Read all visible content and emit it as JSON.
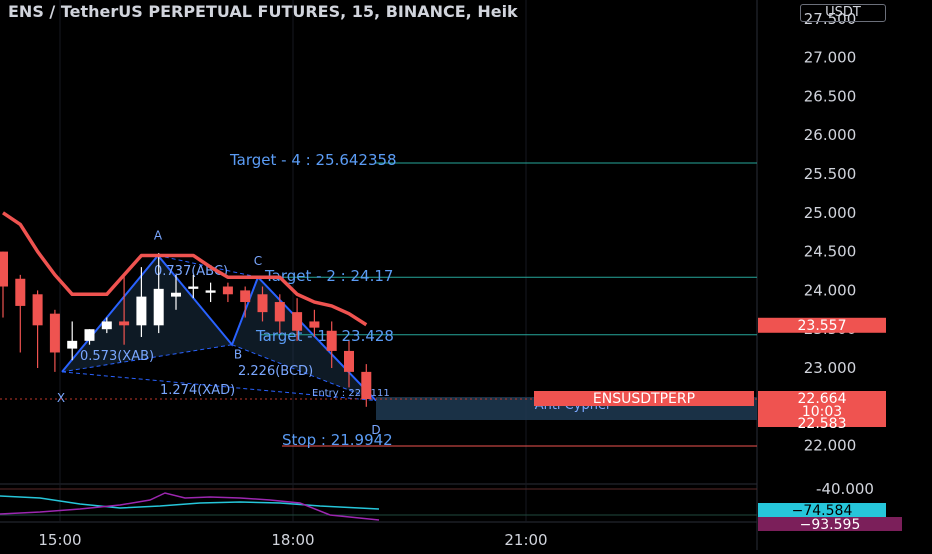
{
  "header": {
    "title": "ENS / TetherUS PERPETUAL FUTURES, 15, BINANCE, Heik",
    "currency": "USDT"
  },
  "price_axis": {
    "ticks": [
      "27.500",
      "27.000",
      "26.500",
      "26.000",
      "25.500",
      "25.000",
      "24.500",
      "24.000",
      "23.500",
      "23.000",
      "22.000"
    ]
  },
  "time_axis": {
    "ticks": [
      "15:00",
      "18:00",
      "21:00"
    ]
  },
  "price_labels": {
    "ma_value": "23.557",
    "last_price": "22.664",
    "countdown": "10:03",
    "entry_box_price": "22.583",
    "symbol_tag": "ENSUSDTPERP"
  },
  "harmonic": {
    "point_a": "A",
    "point_b": "B",
    "point_c": "C",
    "point_d": "D",
    "point_x": "X",
    "ratio_abc": "0.737(ABC)",
    "ratio_xab": "0.573(XAB)",
    "ratio_bcd": "2.226(BCD)",
    "ratio_xad": "1.274(XAD)",
    "entry": "Entry : 22.7111",
    "pattern_name": "Anti Cypher",
    "target_4": "Target - 4 : 25.642358",
    "target_2": "Target - 2 : 24.17",
    "target_1": "Target - 1 : 23.428",
    "stop": "Stop : 21.9942"
  },
  "oscillator": {
    "ticks": [
      "-40.000"
    ],
    "value_cyan": "−74.584",
    "value_purple": "−93.595"
  },
  "colors": {
    "up": "#ffffff",
    "down": "#ef5350",
    "ma_line": "#ef5350",
    "pattern": "#2962ff",
    "pattern_fill": "#1e3a52",
    "target_line": "#26a69a",
    "stop_line": "#ef5350",
    "osc_cyan": "#26c6da",
    "osc_purple": "#9c27b0",
    "axis_text": "#d1d4dc"
  },
  "chart_data": {
    "type": "candlestick",
    "x": [
      "14:15",
      "14:30",
      "14:45",
      "15:00",
      "15:15",
      "15:30",
      "15:45",
      "16:00",
      "16:15",
      "16:30",
      "16:45",
      "17:00",
      "17:15",
      "17:30",
      "17:45",
      "18:00",
      "18:15",
      "18:30",
      "18:45",
      "19:00",
      "19:15",
      "19:30"
    ],
    "open": [
      24.5,
      24.15,
      23.95,
      23.7,
      23.25,
      23.35,
      23.5,
      23.6,
      23.55,
      23.55,
      23.92,
      24.02,
      23.97,
      24.05,
      24.0,
      23.95,
      23.85,
      23.72,
      23.6,
      23.48,
      23.22,
      22.95
    ],
    "close": [
      24.05,
      23.8,
      23.55,
      23.2,
      23.35,
      23.5,
      23.6,
      23.55,
      23.92,
      24.02,
      23.97,
      24.05,
      24.0,
      23.95,
      23.85,
      23.72,
      23.6,
      23.48,
      23.52,
      23.22,
      22.95,
      22.6
    ],
    "high": [
      24.5,
      24.2,
      24.0,
      23.75,
      23.6,
      23.5,
      23.65,
      24.2,
      24.3,
      24.48,
      24.2,
      24.2,
      24.1,
      24.1,
      24.05,
      24.05,
      23.95,
      23.9,
      23.75,
      23.6,
      23.35,
      23.05
    ],
    "low": [
      23.65,
      23.2,
      23.0,
      22.95,
      23.1,
      23.3,
      23.45,
      23.3,
      23.4,
      23.45,
      23.75,
      23.9,
      23.85,
      23.85,
      23.65,
      23.6,
      23.45,
      23.35,
      23.4,
      23.0,
      22.75,
      22.5
    ],
    "ma_line": [
      25.0,
      24.85,
      24.5,
      24.2,
      23.95,
      23.95,
      23.95,
      24.2,
      24.45,
      24.45,
      24.45,
      24.45,
      24.3,
      24.17,
      24.17,
      24.17,
      24.17,
      23.95,
      23.85,
      23.8,
      23.7,
      23.557
    ],
    "ylim": [
      21.5,
      27.7
    ]
  }
}
